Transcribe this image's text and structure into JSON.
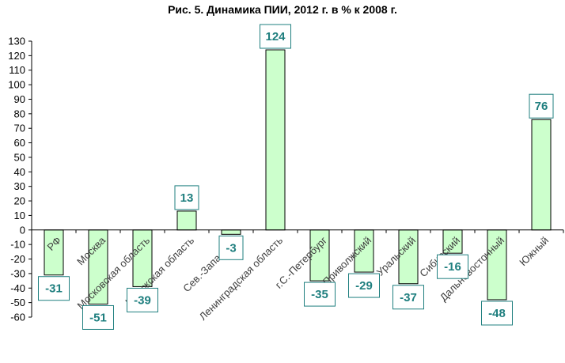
{
  "chart_data": {
    "type": "bar",
    "title": "Рис. 5. Динамика ПИИ, 2012 г. в % к 2008 г.",
    "xlabel": "",
    "ylabel": "",
    "ylim": [
      -60,
      130
    ],
    "yticks": [
      130,
      120,
      110,
      100,
      90,
      80,
      70,
      60,
      50,
      40,
      30,
      20,
      10,
      0,
      -10,
      -20,
      -30,
      -40,
      -50,
      -60
    ],
    "grid": false,
    "legend": "none",
    "categories": [
      "РФ",
      "Москва",
      "Московская область",
      "Калужская область",
      "Сев.-Западный",
      "Ленинградская область",
      "г.С.-Петербург",
      "Приволжский",
      "Уральский",
      "Сибирский",
      "Дальневосточный",
      "Южный"
    ],
    "values": [
      -31,
      -51,
      -39,
      13,
      -3,
      124,
      -35,
      -29,
      -37,
      -16,
      -48,
      76
    ],
    "colors": {
      "bar_fill": "#ccffcc",
      "bar_stroke": "#000000",
      "label_text": "#1f7f7f",
      "label_border": "#1f7f7f",
      "axis": "#000000",
      "category_text": "#404040"
    }
  }
}
